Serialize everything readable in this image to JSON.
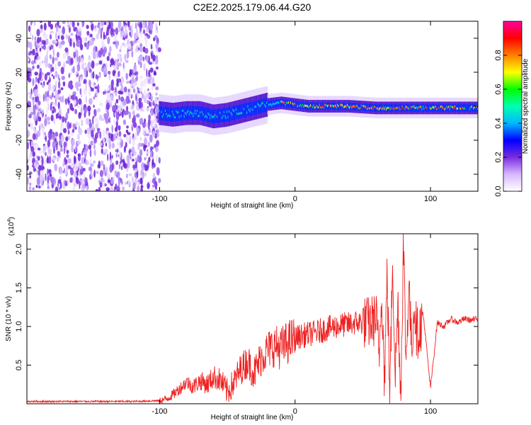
{
  "title": "C2E2.2025.179.06.44.G20",
  "chart_data": [
    {
      "type": "heatmap",
      "xlabel": "Height of straight line (km)",
      "ylabel": "Frequency (Hz)",
      "xlim": [
        -198,
        135
      ],
      "ylim": [
        -50,
        50
      ],
      "x_ticks": [
        -100,
        0,
        100
      ],
      "x_tick_labels": [
        "-100",
        "0",
        "100"
      ],
      "y_ticks": [
        -40,
        -20,
        0,
        20,
        40
      ],
      "y_tick_labels": [
        "-40",
        "-20",
        "0",
        "20",
        "40"
      ],
      "noise_region_x": [
        -198,
        -100
      ],
      "signal_line": {
        "x": [
          -100,
          -90,
          -80,
          -70,
          -60,
          -50,
          -40,
          -30,
          -20,
          -10,
          0,
          10,
          20,
          40,
          60,
          70,
          80,
          100,
          120,
          135
        ],
        "y": [
          -4,
          -5,
          -4,
          -4,
          -6,
          -5,
          -3,
          -1,
          1,
          2,
          1,
          0,
          0,
          0,
          -1,
          -1,
          -1,
          -1,
          -1,
          -1
        ]
      },
      "colorbar": {
        "label": "Normalized spectral amplitude",
        "range": [
          0,
          1
        ],
        "ticks": [
          0.0,
          0.2,
          0.4,
          0.6,
          0.8
        ],
        "tick_labels": [
          "0.0",
          "0.2",
          "0.4",
          "0.6",
          "0.8"
        ],
        "colors": [
          "#ffffff",
          "#d7b8ff",
          "#7a2ce0",
          "#0000ff",
          "#00b8ff",
          "#00ffb0",
          "#00ff00",
          "#ffff00",
          "#ff8000",
          "#ff0000",
          "#ff00a0"
        ]
      }
    },
    {
      "type": "line",
      "xlabel": "Height of straight line (km)",
      "ylabel": "SNR (10 * v/v)",
      "scale_label": "(x10",
      "scale_exponent": "4",
      "xlim": [
        -198,
        135
      ],
      "ylim": [
        0,
        2.2
      ],
      "x_ticks": [
        -100,
        0,
        100
      ],
      "x_tick_labels": [
        "-100",
        "0",
        "100"
      ],
      "y_ticks": [
        0.5,
        1.0,
        1.5,
        2.0
      ],
      "y_tick_labels": [
        "0.5",
        "1.0",
        "1.5",
        "2.0"
      ],
      "color": "#ee2222",
      "series": [
        {
          "x": [
            -198,
            -180,
            -160,
            -140,
            -120,
            -100,
            -95,
            -90,
            -85,
            -80,
            -75,
            -70,
            -65,
            -60,
            -55,
            -50,
            -45,
            -40,
            -35,
            -30,
            -25,
            -20,
            -15,
            -10,
            -5,
            0,
            5,
            10,
            15,
            20,
            25,
            30,
            35,
            40,
            45,
            50,
            55,
            60,
            62,
            64,
            66,
            68,
            70,
            72,
            74,
            76,
            78,
            80,
            82,
            84,
            86,
            88,
            90,
            95,
            100,
            105,
            110,
            115,
            120,
            125,
            130,
            135
          ],
          "y": [
            0.03,
            0.03,
            0.03,
            0.03,
            0.03,
            0.04,
            0.06,
            0.12,
            0.2,
            0.28,
            0.22,
            0.3,
            0.25,
            0.35,
            0.3,
            0.15,
            0.28,
            0.45,
            0.55,
            0.4,
            0.6,
            0.7,
            0.75,
            0.72,
            0.8,
            0.85,
            0.88,
            0.9,
            0.92,
            0.95,
            0.98,
            1.0,
            1.02,
            1.03,
            1.05,
            1.05,
            1.05,
            1.1,
            0.6,
            1.5,
            0.3,
            1.7,
            0.05,
            1.9,
            0.4,
            1.3,
            0.1,
            2.1,
            0.5,
            1.6,
            0.7,
            1.3,
            0.9,
            1.1,
            0.2,
            1.05,
            1.0,
            1.1,
            1.05,
            1.1,
            1.08,
            1.1
          ]
        }
      ]
    }
  ]
}
